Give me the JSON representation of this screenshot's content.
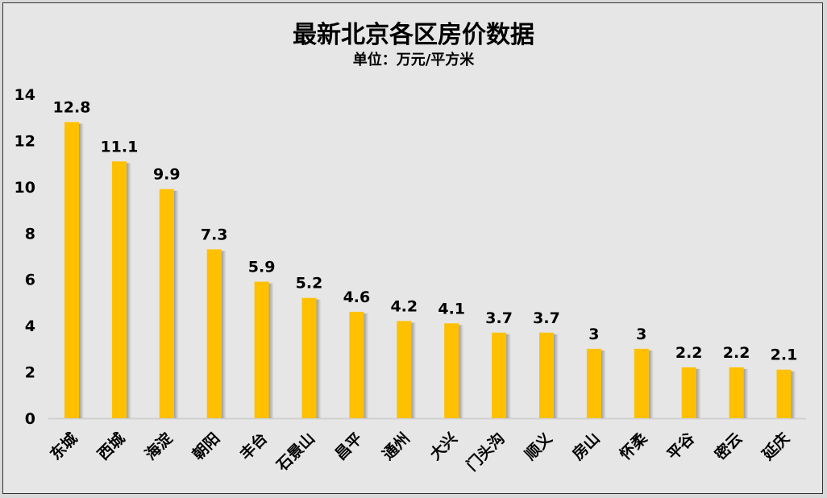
{
  "chart_data": {
    "type": "bar",
    "title": "最新北京各区房价数据",
    "subtitle": "单位：万元/平方米",
    "xlabel": "",
    "ylabel": "",
    "ylim": [
      0,
      14
    ],
    "yticks": [
      0,
      2,
      4,
      6,
      8,
      10,
      12,
      14
    ],
    "grid": false,
    "categories": [
      "东城",
      "西城",
      "海淀",
      "朝阳",
      "丰台",
      "石景山",
      "昌平",
      "通州",
      "大兴",
      "门头沟",
      "顺义",
      "房山",
      "怀柔",
      "平谷",
      "密云",
      "延庆"
    ],
    "values": [
      12.8,
      11.1,
      9.9,
      7.3,
      5.9,
      5.2,
      4.6,
      4.2,
      4.1,
      3.7,
      3.7,
      3,
      3,
      2.2,
      2.2,
      2.1
    ],
    "bar_color": "#FFC000"
  }
}
